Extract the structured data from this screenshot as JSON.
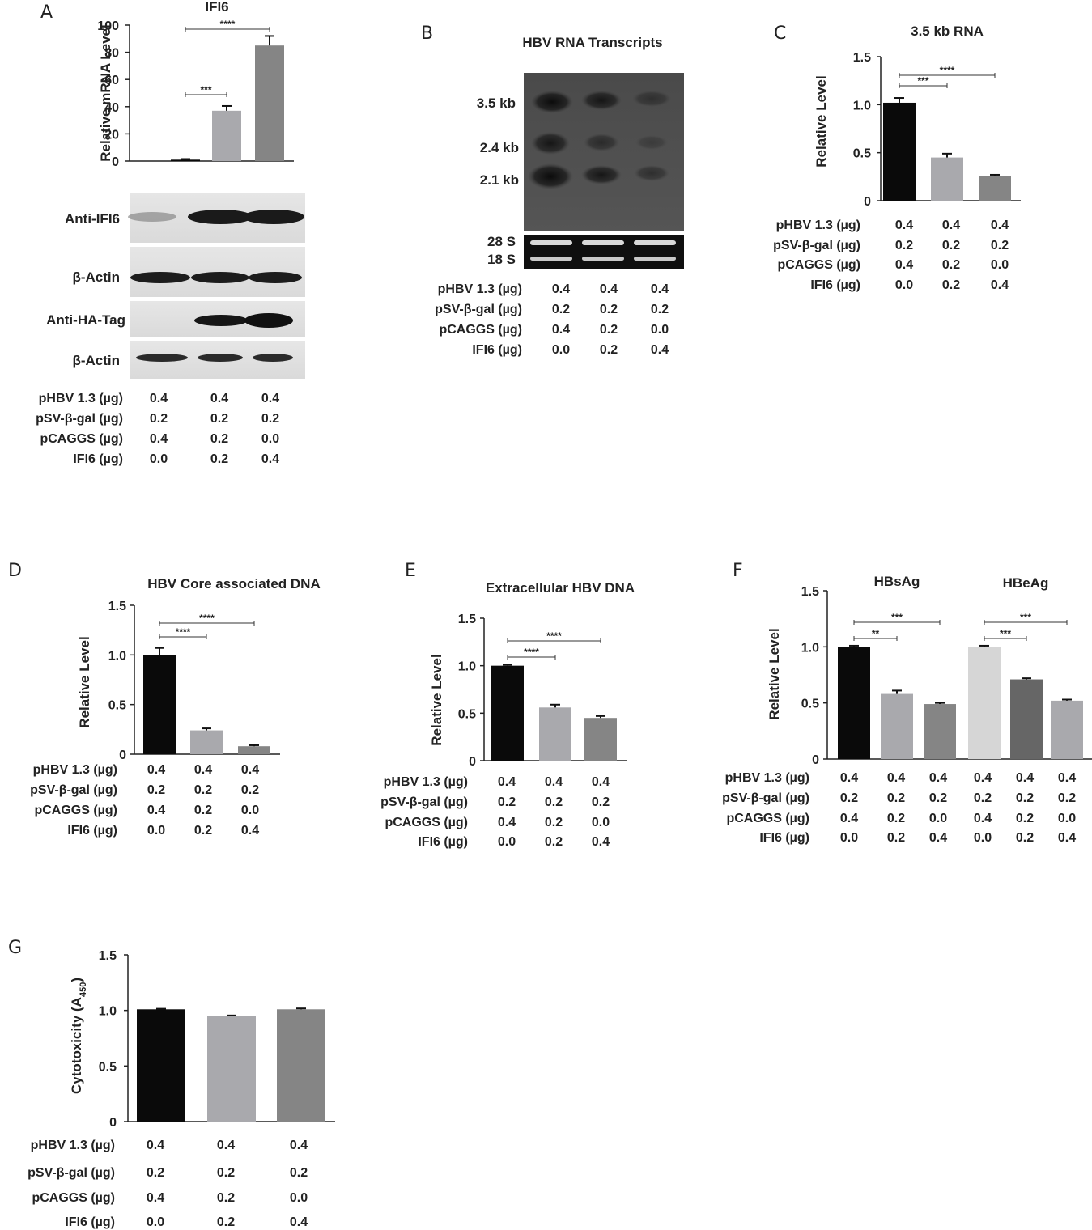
{
  "panel_labels": [
    "A",
    "B",
    "C",
    "D",
    "E",
    "F",
    "G"
  ],
  "conditions": {
    "labels": [
      "pHBV 1.3 (µg)",
      "pSV-β-gal (µg)",
      "pCAGGS (µg)",
      "IFI6 (µg)"
    ],
    "values": [
      [
        "0.4",
        "0.4",
        "0.4"
      ],
      [
        "0.2",
        "0.2",
        "0.2"
      ],
      [
        "0.4",
        "0.2",
        "0.0"
      ],
      [
        "0.0",
        "0.2",
        "0.4"
      ]
    ],
    "values_f": [
      [
        "0.4",
        "0.4",
        "0.4",
        "0.4",
        "0.4",
        "0.4"
      ],
      [
        "0.2",
        "0.2",
        "0.2",
        "0.2",
        "0.2",
        "0.2"
      ],
      [
        "0.4",
        "0.2",
        "0.0",
        "0.4",
        "0.2",
        "0.0"
      ],
      [
        "0.0",
        "0.2",
        "0.4",
        "0.0",
        "0.2",
        "0.4"
      ]
    ]
  },
  "blots": {
    "a_labels": [
      "Anti-IFI6",
      "β-Actin",
      "Anti-HA-Tag",
      "β-Actin"
    ],
    "b_title": "HBV RNA Transcripts",
    "b_bands": [
      "3.5 kb",
      "2.4 kb",
      "2.1 kb"
    ],
    "b_rrna": [
      "28 S",
      "18 S"
    ]
  },
  "colors": {
    "black": "#0a0a0a",
    "light_gray": "#a9a9ad",
    "mid_gray": "#858585",
    "very_light_gray": "#d6d6d6",
    "dark_gray": "#666666"
  },
  "chart_data": [
    {
      "panel": "A",
      "type": "bar",
      "title": "IFI6",
      "ylabel": "Relative mRNA Level",
      "ylim": [
        0,
        100
      ],
      "yticks": [
        "0",
        "20",
        "40",
        "60",
        "80",
        "100"
      ],
      "values": [
        1,
        37,
        85
      ],
      "errors": [
        0.5,
        3.5,
        7
      ],
      "significance": [
        {
          "label": "***",
          "from": 0,
          "to": 1
        },
        {
          "label": "****",
          "from": 0,
          "to": 2
        }
      ]
    },
    {
      "panel": "C",
      "type": "bar",
      "title": "3.5 kb RNA",
      "ylabel": "Relative Level",
      "ylim": [
        0,
        1.5
      ],
      "yticks": [
        "0",
        "0.5",
        "1.0",
        "1.5"
      ],
      "values": [
        1.02,
        0.45,
        0.26
      ],
      "errors": [
        0.05,
        0.04,
        0.01
      ],
      "significance": [
        {
          "label": "***",
          "from": 0,
          "to": 1
        },
        {
          "label": "****",
          "from": 0,
          "to": 2
        }
      ]
    },
    {
      "panel": "D",
      "type": "bar",
      "title": "HBV Core associated  DNA",
      "ylabel": "Relative Level",
      "ylim": [
        0,
        1.5
      ],
      "yticks": [
        "0",
        "0.5",
        "1.0",
        "1.5"
      ],
      "values": [
        1.0,
        0.24,
        0.08
      ],
      "errors": [
        0.07,
        0.02,
        0.01
      ],
      "significance": [
        {
          "label": "****",
          "from": 0,
          "to": 1
        },
        {
          "label": "****",
          "from": 0,
          "to": 2
        }
      ]
    },
    {
      "panel": "E",
      "type": "bar",
      "title": "Extracellular HBV  DNA",
      "ylabel": "Relative   Level",
      "ylim": [
        0,
        1.5
      ],
      "yticks": [
        "0",
        "0.5",
        "1.0",
        "1.5"
      ],
      "values": [
        1.0,
        0.56,
        0.45
      ],
      "errors": [
        0.01,
        0.03,
        0.02
      ],
      "significance": [
        {
          "label": "****",
          "from": 0,
          "to": 1
        },
        {
          "label": "****",
          "from": 0,
          "to": 2
        }
      ]
    },
    {
      "panel": "F",
      "type": "bar",
      "ylabel": "Relative Level",
      "group_labels": [
        "HBsAg",
        "HBeAg"
      ],
      "ylim": [
        0,
        1.5
      ],
      "yticks": [
        "0",
        "0.5",
        "1.0",
        "1.5"
      ],
      "values": [
        1.0,
        0.58,
        0.49,
        1.0,
        0.71,
        0.52
      ],
      "errors": [
        0.01,
        0.03,
        0.01,
        0.01,
        0.01,
        0.01
      ],
      "significance": [
        {
          "label": "**",
          "from": 0,
          "to": 1
        },
        {
          "label": "***",
          "from": 0,
          "to": 2
        },
        {
          "label": "***",
          "from": 3,
          "to": 4
        },
        {
          "label": "***",
          "from": 3,
          "to": 5
        }
      ]
    },
    {
      "panel": "G",
      "type": "bar",
      "ylabel": "Cytotoxicity (A",
      "ylabel_sub": "450",
      "ylabel_end": ")",
      "ylim": [
        0,
        1.5
      ],
      "yticks": [
        "0",
        "0.5",
        "1.0",
        "1.5"
      ],
      "values": [
        1.01,
        0.95,
        1.01
      ],
      "errors": [
        0.005,
        0.005,
        0.008
      ],
      "significance": []
    }
  ]
}
